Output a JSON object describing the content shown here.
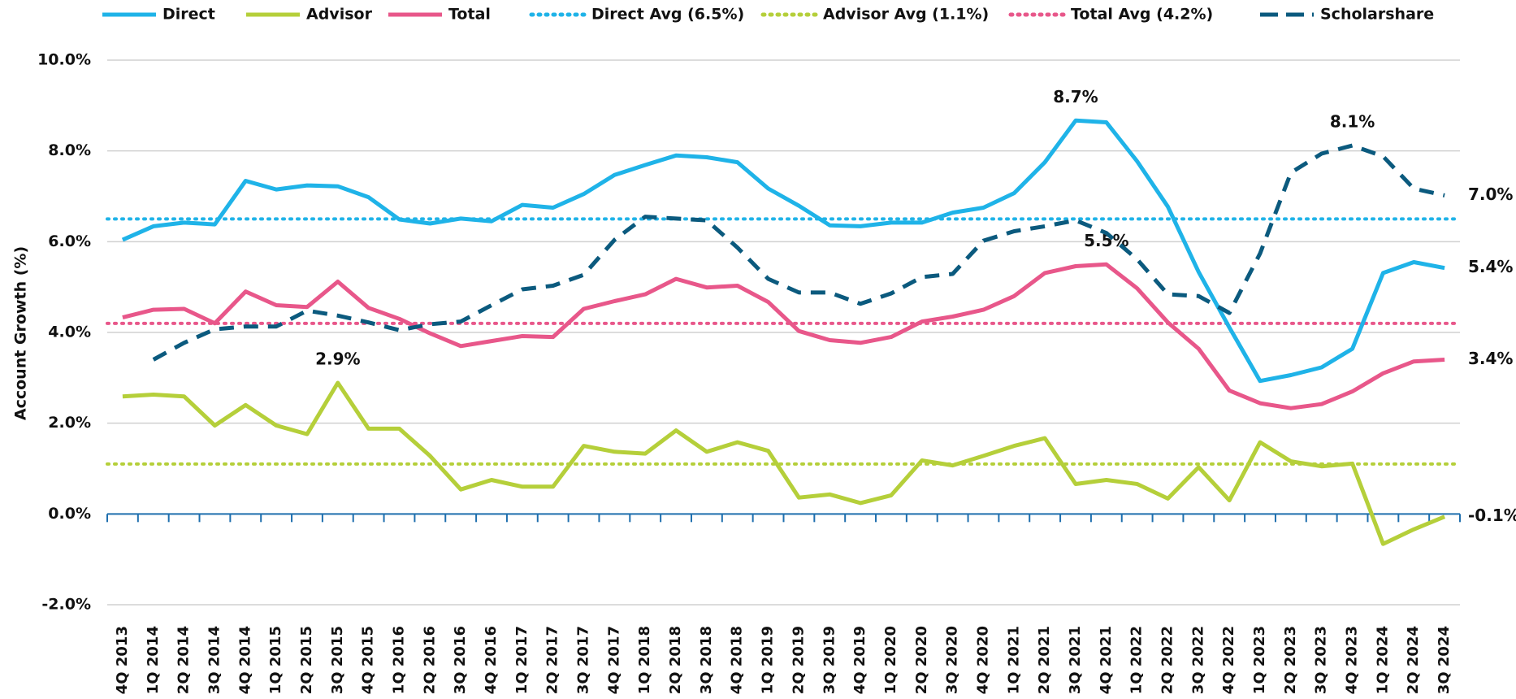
{
  "chart_data": {
    "type": "line",
    "y_label": "Account Growth (%)",
    "categories": [
      "4Q 2013",
      "1Q 2014",
      "2Q 2014",
      "3Q 2014",
      "4Q 2014",
      "1Q 2015",
      "2Q 2015",
      "3Q 2015",
      "4Q 2015",
      "1Q 2016",
      "2Q 2016",
      "3Q 2016",
      "4Q 2016",
      "1Q 2017",
      "2Q 2017",
      "3Q 2017",
      "4Q 2017",
      "1Q 2018",
      "2Q 2018",
      "3Q 2018",
      "4Q 2018",
      "1Q 2019",
      "2Q 2019",
      "3Q 2019",
      "4Q 2019",
      "1Q 2020",
      "2Q 2020",
      "3Q 2020",
      "4Q 2020",
      "1Q 2021",
      "2Q 2021",
      "3Q 2021",
      "4Q 2021",
      "1Q 2022",
      "2Q 2022",
      "3Q 2022",
      "4Q 2022",
      "1Q 2023",
      "2Q 2023",
      "3Q 2023",
      "4Q 2023",
      "1Q 2024",
      "2Q 2024",
      "3Q 2024"
    ],
    "series": [
      {
        "name": "Direct",
        "color": "#1fb3e8",
        "style": "solid",
        "values": [
          6.04,
          6.34,
          6.42,
          6.38,
          7.34,
          7.15,
          7.24,
          7.22,
          6.98,
          6.49,
          6.4,
          6.51,
          6.45,
          6.81,
          6.75,
          7.05,
          7.47,
          7.69,
          7.9,
          7.86,
          7.75,
          7.17,
          6.79,
          6.36,
          6.34,
          6.42,
          6.42,
          6.64,
          6.75,
          7.07,
          7.75,
          8.67,
          8.63,
          7.77,
          6.77,
          5.33,
          4.11,
          2.93,
          3.06,
          3.23,
          3.64,
          5.31,
          5.55,
          5.42
        ],
        "value_labels": [
          null,
          null,
          null,
          null,
          null,
          null,
          null,
          null,
          null,
          null,
          null,
          null,
          null,
          null,
          null,
          null,
          null,
          null,
          null,
          null,
          null,
          null,
          null,
          null,
          null,
          null,
          null,
          null,
          null,
          null,
          null,
          "8.7%",
          null,
          null,
          null,
          null,
          null,
          null,
          null,
          null,
          null,
          null,
          null,
          "5.4%"
        ]
      },
      {
        "name": "Advisor",
        "color": "#b5cf3a",
        "style": "solid",
        "values": [
          2.59,
          2.63,
          2.59,
          1.95,
          2.4,
          1.95,
          1.76,
          2.89,
          1.88,
          1.88,
          1.28,
          0.54,
          0.75,
          0.6,
          0.6,
          1.5,
          1.37,
          1.33,
          1.84,
          1.37,
          1.58,
          1.39,
          0.36,
          0.43,
          0.24,
          0.41,
          1.18,
          1.07,
          1.28,
          1.5,
          1.67,
          0.66,
          0.75,
          0.66,
          0.34,
          1.03,
          0.3,
          1.58,
          1.16,
          1.05,
          1.11,
          -0.66,
          -0.34,
          -0.06
        ],
        "value_labels": [
          null,
          null,
          null,
          null,
          null,
          null,
          null,
          "2.9%",
          null,
          null,
          null,
          null,
          null,
          null,
          null,
          null,
          null,
          null,
          null,
          null,
          null,
          null,
          null,
          null,
          null,
          null,
          null,
          null,
          null,
          null,
          null,
          null,
          null,
          null,
          null,
          null,
          null,
          null,
          null,
          null,
          null,
          null,
          null,
          "-0.1%"
        ]
      },
      {
        "name": "Total",
        "color": "#e8578a",
        "style": "solid",
        "values": [
          4.33,
          4.5,
          4.52,
          4.2,
          4.9,
          4.6,
          4.56,
          5.12,
          4.54,
          4.3,
          3.98,
          3.7,
          3.81,
          3.92,
          3.9,
          4.52,
          4.69,
          4.84,
          5.18,
          4.99,
          5.03,
          4.67,
          4.03,
          3.83,
          3.77,
          3.9,
          4.24,
          4.35,
          4.5,
          4.8,
          5.31,
          5.46,
          5.5,
          4.97,
          4.22,
          3.64,
          2.72,
          2.44,
          2.33,
          2.42,
          2.7,
          3.1,
          3.36,
          3.4
        ],
        "value_labels": [
          null,
          null,
          null,
          null,
          null,
          null,
          null,
          null,
          null,
          null,
          null,
          null,
          null,
          null,
          null,
          null,
          null,
          null,
          null,
          null,
          null,
          null,
          null,
          null,
          null,
          null,
          null,
          null,
          null,
          null,
          null,
          null,
          "5.5%",
          null,
          null,
          null,
          null,
          null,
          null,
          null,
          null,
          null,
          null,
          "3.4%"
        ]
      },
      {
        "name": "Scholarshare",
        "color": "#0b5a7e",
        "style": "dashed",
        "values": [
          null,
          3.4,
          3.77,
          4.07,
          4.13,
          4.13,
          4.48,
          4.37,
          4.22,
          4.05,
          4.18,
          4.24,
          4.6,
          4.95,
          5.03,
          5.27,
          6.04,
          6.55,
          6.51,
          6.47,
          5.87,
          5.18,
          4.88,
          4.88,
          4.63,
          4.86,
          5.22,
          5.29,
          6.02,
          6.23,
          6.34,
          6.47,
          6.19,
          5.61,
          4.84,
          4.8,
          4.43,
          5.74,
          7.52,
          7.94,
          8.12,
          7.88,
          7.17,
          7.02
        ],
        "value_labels": [
          null,
          null,
          null,
          null,
          null,
          null,
          null,
          null,
          null,
          null,
          null,
          null,
          null,
          null,
          null,
          null,
          null,
          null,
          null,
          null,
          null,
          null,
          null,
          null,
          null,
          null,
          null,
          null,
          null,
          null,
          null,
          null,
          null,
          null,
          null,
          null,
          null,
          null,
          null,
          null,
          "8.1%",
          null,
          null,
          "7.0%"
        ]
      }
    ],
    "reference_lines": [
      {
        "name": "Direct Avg (6.5%)",
        "color": "#1fb3e8",
        "value": 6.5
      },
      {
        "name": "Advisor Avg (1.1%)",
        "color": "#b5cf3a",
        "value": 1.1
      },
      {
        "name": "Total Avg (4.2%)",
        "color": "#e8578a",
        "value": 4.2
      }
    ],
    "ylim": [
      -2,
      10
    ],
    "yticks": [
      {
        "value": -2,
        "label": "-2.0%"
      },
      {
        "value": 0,
        "label": "0.0%"
      },
      {
        "value": 2,
        "label": "2.0%"
      },
      {
        "value": 4,
        "label": "4.0%"
      },
      {
        "value": 6,
        "label": "6.0%"
      },
      {
        "value": 8,
        "label": "8.0%"
      },
      {
        "value": 10,
        "label": "10.0%"
      }
    ],
    "grid": true
  }
}
